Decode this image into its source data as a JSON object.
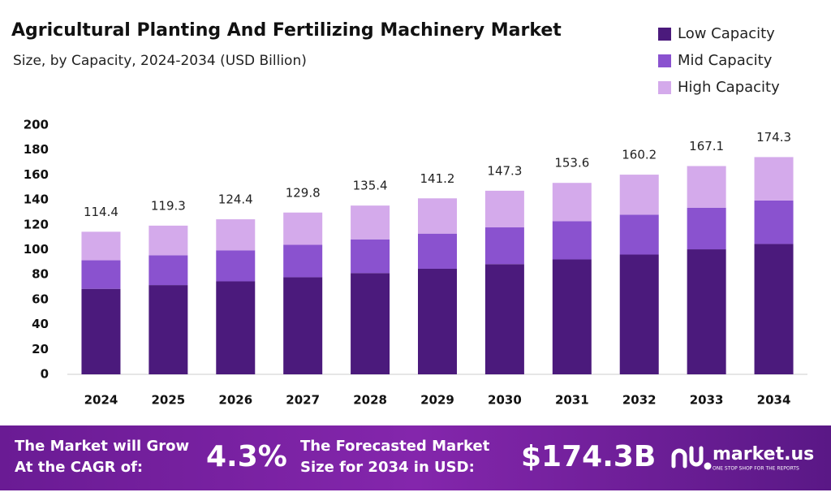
{
  "chart_data": {
    "type": "stacked-bar",
    "title": "Agricultural Planting And Fertilizing Machinery Market",
    "subtitle": "Size, by Capacity, 2024-2034 (USD Billion)",
    "categories": [
      "2024",
      "2025",
      "2026",
      "2027",
      "2028",
      "2029",
      "2030",
      "2031",
      "2032",
      "2033",
      "2034"
    ],
    "series": [
      {
        "name": "Low Capacity",
        "color": "#4b1a7c",
        "values": [
          68.6,
          71.6,
          74.6,
          77.9,
          81.2,
          84.7,
          88.4,
          92.2,
          96.1,
          100.3,
          104.6
        ]
      },
      {
        "name": "Mid Capacity",
        "color": "#8a52cf",
        "values": [
          22.9,
          23.9,
          24.9,
          26.0,
          27.1,
          28.2,
          29.5,
          30.7,
          32.0,
          33.4,
          34.9
        ]
      },
      {
        "name": "High Capacity",
        "color": "#d4aaeb",
        "values": [
          22.9,
          23.8,
          24.9,
          25.9,
          27.1,
          28.3,
          29.4,
          30.7,
          32.1,
          33.4,
          34.8
        ]
      }
    ],
    "totals": [
      114.4,
      119.3,
      124.4,
      129.8,
      135.4,
      141.2,
      147.3,
      153.6,
      160.2,
      167.1,
      174.3
    ],
    "ylim": [
      0,
      200
    ],
    "yticks": [
      0,
      20,
      40,
      60,
      80,
      100,
      120,
      140,
      160,
      180,
      200
    ],
    "grid": false,
    "legend": "top-right"
  },
  "banner": {
    "cagr_text_1": "The Market will Grow",
    "cagr_text_2": "At the CAGR of:",
    "cagr": "4.3%",
    "forecast_text_1": "The Forecasted Market",
    "forecast_text_2": "Size for 2034 in USD:",
    "forecast": "$174.3B",
    "logo": "market.us",
    "tagline": "ONE STOP SHOP FOR THE REPORTS"
  }
}
